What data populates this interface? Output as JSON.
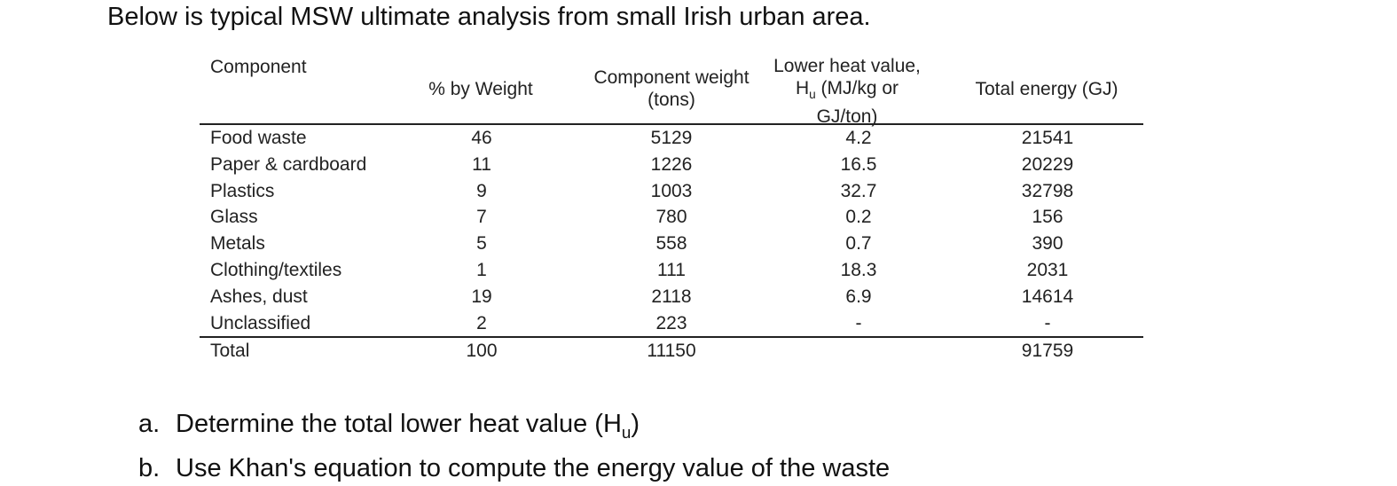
{
  "intro": "Below is typical MSW ultimate analysis from small Irish urban area.",
  "table": {
    "headers": {
      "component": "Component",
      "pct_weight": "% by Weight",
      "comp_weight_1": "Component weight",
      "comp_weight_2": "(tons)",
      "lhv_1": "Lower heat value,",
      "lhv_2_pre": "H",
      "lhv_2_sub": "u",
      "lhv_2_post": " (MJ/kg or",
      "lhv_3": "GJ/ton)",
      "total_energy": "Total energy (GJ)"
    },
    "rows": [
      {
        "component": "Food waste",
        "pct": "46",
        "weight": "5129",
        "lhv": "4.2",
        "energy": "21541"
      },
      {
        "component": "Paper & cardboard",
        "pct": "11",
        "weight": "1226",
        "lhv": "16.5",
        "energy": "20229"
      },
      {
        "component": "Plastics",
        "pct": "9",
        "weight": "1003",
        "lhv": "32.7",
        "energy": "32798"
      },
      {
        "component": "Glass",
        "pct": "7",
        "weight": "780",
        "lhv": "0.2",
        "energy": "156"
      },
      {
        "component": "Metals",
        "pct": "5",
        "weight": "558",
        "lhv": "0.7",
        "energy": "390"
      },
      {
        "component": "Clothing/textiles",
        "pct": "1",
        "weight": "111",
        "lhv": "18.3",
        "energy": "2031"
      },
      {
        "component": "Ashes, dust",
        "pct": "19",
        "weight": "2118",
        "lhv": "6.9",
        "energy": "14614"
      },
      {
        "component": "Unclassified",
        "pct": "2",
        "weight": "223",
        "lhv": "-",
        "energy": "-"
      }
    ],
    "total": {
      "component": "Total",
      "pct": "100",
      "weight": "11150",
      "lhv": "",
      "energy": "91759"
    }
  },
  "questions": {
    "a_marker": "a.",
    "a_text_pre": "Determine the total lower heat value (H",
    "a_text_sub": "u",
    "a_text_post": ")",
    "b_marker": "b.",
    "b_text": "Use Khan's equation to compute the energy value of the waste"
  }
}
